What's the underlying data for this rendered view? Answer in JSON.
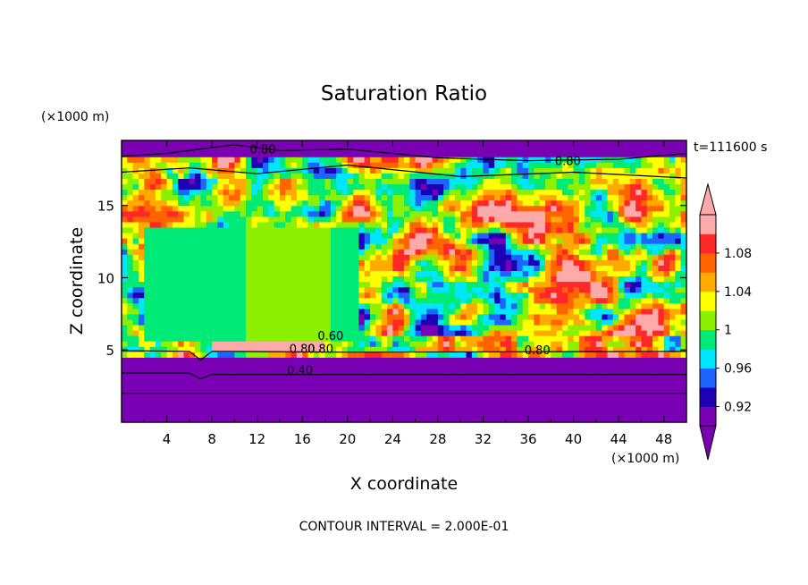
{
  "chart_data": {
    "type": "heatmap",
    "title": "Saturation Ratio",
    "xlabel": "X coordinate",
    "ylabel": "Z coordinate",
    "x_unit": "(×1000 m)",
    "y_unit": "(×1000 m)",
    "time_label": "t=111600 s",
    "footer": "CONTOUR INTERVAL = 2.000E-01",
    "xlim": [
      0,
      50
    ],
    "ylim": [
      0,
      19.5
    ],
    "x_ticks": [
      4,
      8,
      12,
      16,
      20,
      24,
      28,
      32,
      36,
      40,
      44,
      48
    ],
    "y_ticks": [
      5,
      10,
      15
    ],
    "grid": false,
    "legend_position": "right",
    "colorbar": {
      "labels": [
        "0.92",
        "0.96",
        "1",
        "1.04",
        "1.08"
      ],
      "colors": [
        "#7a00b4",
        "#1e00b4",
        "#1e64ff",
        "#00e6ff",
        "#00ea78",
        "#8cf000",
        "#ffff00",
        "#ffaa00",
        "#ff6400",
        "#ff2828",
        "#ffaaaa"
      ],
      "levels": [
        0.9,
        0.92,
        0.94,
        0.96,
        0.98,
        1.0,
        1.02,
        1.04,
        1.06,
        1.08,
        1.1
      ]
    },
    "contour_labels": [
      {
        "text": "0.80",
        "x": 12.5,
        "y": 18.6
      },
      {
        "text": "0.80",
        "x": 39.5,
        "y": 17.8
      },
      {
        "text": "0.80",
        "x": 16.0,
        "y": 4.8
      },
      {
        "text": "0.80",
        "x": 17.6,
        "y": 4.8
      },
      {
        "text": "0.60",
        "x": 18.5,
        "y": 5.7
      },
      {
        "text": "0.80",
        "x": 36.8,
        "y": 4.7
      },
      {
        "text": "0.40",
        "x": 15.8,
        "y": 3.3
      }
    ]
  }
}
